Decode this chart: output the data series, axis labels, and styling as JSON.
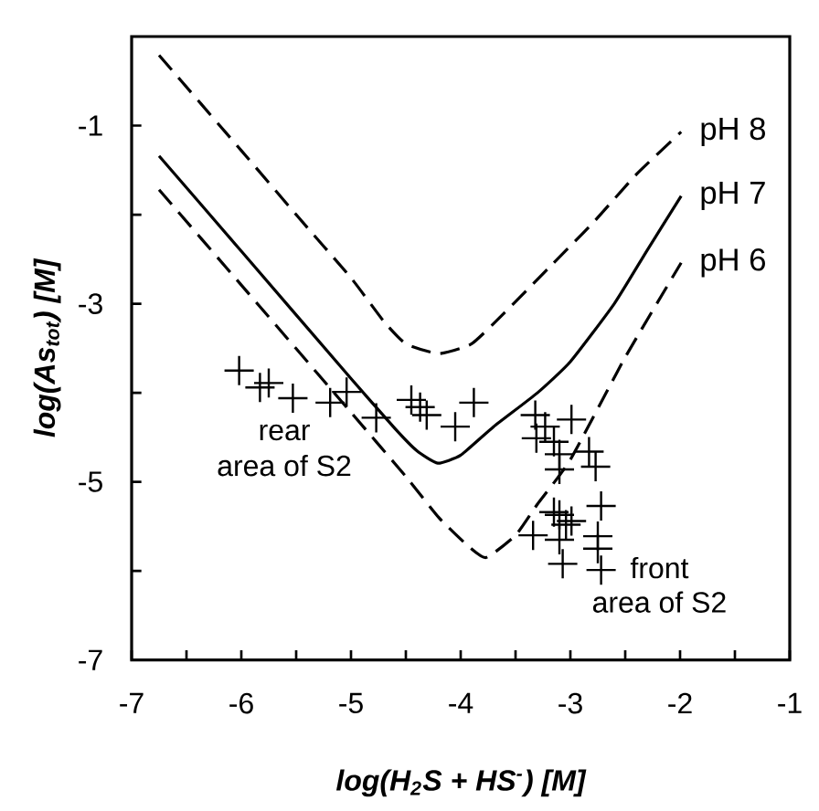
{
  "chart_data": {
    "type": "line",
    "xlabel": "log(H$_{2}$S + HS$^{-}$) [M]",
    "ylabel": "log(As$_{tot}$) [M]",
    "xlim": [
      -7,
      -1
    ],
    "ylim": [
      -7,
      0
    ],
    "xticks": [
      -7,
      {
        "value": -6.5,
        "label": null
      },
      -6,
      {
        "value": -5.5,
        "label": null
      },
      -5,
      {
        "value": -4.5,
        "label": null
      },
      -4,
      {
        "value": -3.5,
        "label": null
      },
      -3,
      {
        "value": -2.5,
        "label": null
      },
      -2,
      {
        "value": -1.5,
        "label": null
      },
      -1
    ],
    "yticks": [
      -7,
      {
        "value": -6,
        "label": null
      },
      -5,
      {
        "value": -4,
        "label": null
      },
      -3,
      {
        "value": -2,
        "label": null
      },
      -1
    ],
    "grid": false,
    "series": [
      {
        "name": "pH 8",
        "line_style": "dashed",
        "color": "#000000",
        "x": [
          -6.75,
          -6.0,
          -5.5,
          -5.0,
          -4.7,
          -4.5,
          -4.2,
          -3.9,
          -3.6,
          -3.2,
          -2.8,
          -2.4,
          -1.99
        ],
        "values": [
          -0.21,
          -1.28,
          -2.0,
          -2.71,
          -3.2,
          -3.45,
          -3.56,
          -3.45,
          -3.1,
          -2.6,
          -2.1,
          -1.55,
          -1.07
        ]
      },
      {
        "name": "pH 7",
        "line_style": "solid",
        "color": "#000000",
        "x": [
          -6.75,
          -6.0,
          -5.0,
          -4.6,
          -4.4,
          -4.21,
          -4.0,
          -3.7,
          -3.3,
          -3.0,
          -2.6,
          -2.3,
          -1.99
        ],
        "values": [
          -1.34,
          -2.41,
          -3.84,
          -4.4,
          -4.65,
          -4.79,
          -4.7,
          -4.38,
          -4.0,
          -3.65,
          -3.0,
          -2.4,
          -1.79
        ]
      },
      {
        "name": "pH 6",
        "line_style": "dashed",
        "color": "#000000",
        "x": [
          -6.75,
          -6.0,
          -5.0,
          -4.5,
          -4.2,
          -3.95,
          -3.77,
          -3.5,
          -3.3,
          -3.0,
          -2.5,
          -1.99
        ],
        "values": [
          -1.72,
          -2.79,
          -4.22,
          -4.94,
          -5.4,
          -5.7,
          -5.85,
          -5.6,
          -5.25,
          -4.75,
          -3.6,
          -2.54
        ]
      },
      {
        "type": "scatter",
        "marker": "cross",
        "color": "#000000",
        "x": [
          -6.02,
          -5.83,
          -5.75,
          -5.53,
          -5.19,
          -5.04,
          -4.77,
          -4.45,
          -4.37,
          -4.31,
          -4.05,
          -3.88,
          -3.32,
          -3.31,
          -3.23,
          -3.15,
          -3.1,
          -2.99,
          -2.83,
          -2.77,
          -3.1,
          -2.72,
          -3.1,
          -3.04,
          -3.34,
          -3.1,
          -2.75,
          -2.75,
          -3.07,
          -2.72,
          -3.15,
          -2.99
        ],
        "values": [
          -3.75,
          -3.94,
          -3.89,
          -4.06,
          -4.11,
          -3.99,
          -4.28,
          -4.08,
          -4.16,
          -4.25,
          -4.38,
          -4.11,
          -4.25,
          -4.51,
          -4.38,
          -4.55,
          -4.69,
          -4.3,
          -4.66,
          -4.83,
          -4.86,
          -5.27,
          -5.37,
          -5.48,
          -5.6,
          -5.65,
          -5.61,
          -5.75,
          -5.92,
          -5.99,
          -5.34,
          -5.44
        ]
      }
    ],
    "annotations": [
      "rear",
      "area of S2",
      "front",
      "area of S2"
    ]
  }
}
